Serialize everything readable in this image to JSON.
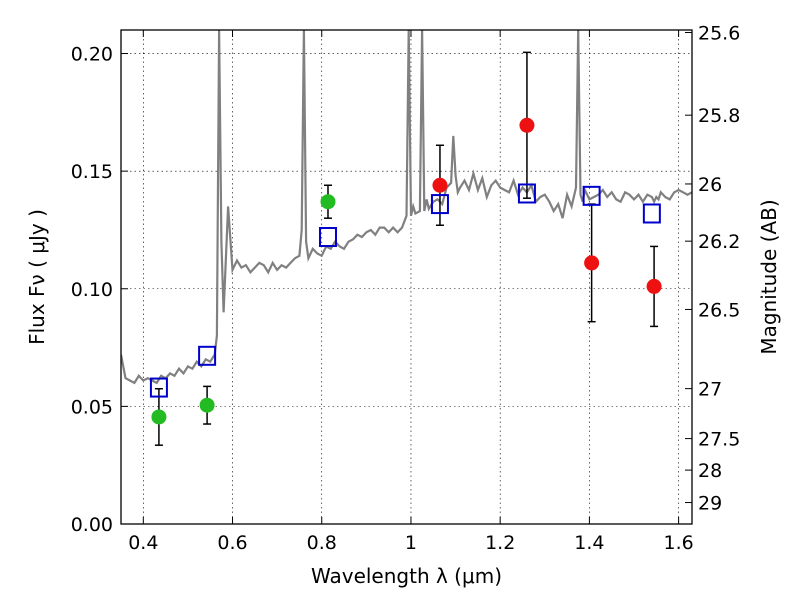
{
  "chart_data": {
    "type": "scatter",
    "title": "",
    "xlabel": "Wavelength  λ (μm)",
    "ylabel": "Flux  Fν  ( μJy )",
    "y2label": "Magnitude (AB)",
    "xlim": [
      0.35,
      1.63
    ],
    "ylim": [
      0.0,
      0.21
    ],
    "grid": true,
    "x_ticks": [
      0.4,
      0.6,
      0.8,
      1.0,
      1.2,
      1.4,
      1.6
    ],
    "x_tick_labels": [
      "0.4",
      "0.6",
      "0.8",
      "1",
      "1.2",
      "1.4",
      "1.6"
    ],
    "y_ticks": [
      0.0,
      0.05,
      0.1,
      0.15,
      0.2
    ],
    "y_tick_labels": [
      "0.00",
      "0.05",
      "0.10",
      "0.15",
      "0.20"
    ],
    "y2_ticks": [
      25.6,
      25.8,
      26,
      26.2,
      26.5,
      27,
      27.5,
      28,
      29
    ],
    "y2_tick_labels": [
      "25.6",
      "25.8",
      "26",
      "26.2",
      "26.5",
      "27",
      "27.5",
      "28",
      "29"
    ],
    "colors": {
      "model": "#808080",
      "green": "#22bb22",
      "red": "#ee1111",
      "boxes": "#0000cc"
    },
    "series": [
      {
        "marker": "circle",
        "color": "green",
        "points": [
          {
            "x": 0.435,
            "y": 0.0455,
            "err": 0.012
          },
          {
            "x": 0.543,
            "y": 0.0505,
            "err": 0.008
          },
          {
            "x": 0.814,
            "y": 0.137,
            "err": 0.007
          }
        ]
      },
      {
        "marker": "circle",
        "color": "red",
        "points": [
          {
            "x": 1.065,
            "y": 0.144,
            "err": 0.017
          },
          {
            "x": 1.26,
            "y": 0.1695,
            "err": 0.031
          },
          {
            "x": 1.405,
            "y": 0.111,
            "err": 0.025
          },
          {
            "x": 1.545,
            "y": 0.101,
            "err": 0.017
          }
        ]
      },
      {
        "marker": "open-square",
        "color": "boxes",
        "points": [
          {
            "x": 0.435,
            "y": 0.058
          },
          {
            "x": 0.543,
            "y": 0.0715
          },
          {
            "x": 0.814,
            "y": 0.122
          },
          {
            "x": 1.065,
            "y": 0.136
          },
          {
            "x": 1.26,
            "y": 0.1405
          },
          {
            "x": 1.405,
            "y": 0.1395
          },
          {
            "x": 1.54,
            "y": 0.132
          }
        ]
      },
      {
        "marker": "line",
        "color": "model",
        "x": [
          0.35,
          0.36,
          0.37,
          0.38,
          0.39,
          0.4,
          0.41,
          0.42,
          0.43,
          0.44,
          0.45,
          0.46,
          0.47,
          0.48,
          0.49,
          0.5,
          0.51,
          0.52,
          0.53,
          0.54,
          0.55,
          0.56,
          0.565,
          0.57,
          0.575,
          0.58,
          0.59,
          0.6,
          0.61,
          0.62,
          0.63,
          0.64,
          0.65,
          0.66,
          0.67,
          0.68,
          0.69,
          0.7,
          0.71,
          0.72,
          0.73,
          0.74,
          0.75,
          0.755,
          0.76,
          0.765,
          0.77,
          0.78,
          0.79,
          0.8,
          0.81,
          0.82,
          0.83,
          0.84,
          0.85,
          0.86,
          0.87,
          0.88,
          0.89,
          0.9,
          0.91,
          0.92,
          0.93,
          0.94,
          0.95,
          0.96,
          0.97,
          0.98,
          0.99,
          0.995,
          1.0,
          1.005,
          1.01,
          1.02,
          1.025,
          1.03,
          1.035,
          1.04,
          1.05,
          1.06,
          1.07,
          1.08,
          1.09,
          1.095,
          1.1,
          1.105,
          1.11,
          1.12,
          1.13,
          1.14,
          1.15,
          1.16,
          1.17,
          1.18,
          1.19,
          1.2,
          1.21,
          1.22,
          1.23,
          1.24,
          1.25,
          1.26,
          1.27,
          1.28,
          1.29,
          1.3,
          1.31,
          1.32,
          1.33,
          1.34,
          1.35,
          1.36,
          1.37,
          1.375,
          1.38,
          1.385,
          1.39,
          1.4,
          1.41,
          1.42,
          1.43,
          1.44,
          1.45,
          1.46,
          1.47,
          1.48,
          1.49,
          1.5,
          1.51,
          1.52,
          1.53,
          1.54,
          1.545,
          1.55,
          1.555,
          1.56,
          1.57,
          1.58,
          1.59,
          1.6,
          1.61,
          1.62,
          1.63
        ],
        "y": [
          0.072,
          0.062,
          0.061,
          0.06,
          0.063,
          0.061,
          0.062,
          0.061,
          0.06,
          0.063,
          0.062,
          0.064,
          0.063,
          0.066,
          0.064,
          0.067,
          0.066,
          0.069,
          0.067,
          0.07,
          0.069,
          0.072,
          0.08,
          0.21,
          0.12,
          0.09,
          0.135,
          0.108,
          0.112,
          0.109,
          0.11,
          0.107,
          0.109,
          0.111,
          0.11,
          0.107,
          0.111,
          0.108,
          0.11,
          0.109,
          0.111,
          0.113,
          0.114,
          0.125,
          0.21,
          0.12,
          0.113,
          0.117,
          0.115,
          0.114,
          0.118,
          0.117,
          0.12,
          0.118,
          0.117,
          0.12,
          0.121,
          0.123,
          0.122,
          0.124,
          0.125,
          0.123,
          0.126,
          0.126,
          0.124,
          0.126,
          0.124,
          0.126,
          0.131,
          0.21,
          0.131,
          0.135,
          0.132,
          0.133,
          0.21,
          0.133,
          0.138,
          0.134,
          0.137,
          0.138,
          0.136,
          0.143,
          0.145,
          0.165,
          0.148,
          0.141,
          0.143,
          0.146,
          0.142,
          0.149,
          0.142,
          0.147,
          0.139,
          0.144,
          0.146,
          0.143,
          0.142,
          0.141,
          0.146,
          0.14,
          0.143,
          0.141,
          0.144,
          0.137,
          0.139,
          0.14,
          0.137,
          0.133,
          0.136,
          0.13,
          0.14,
          0.135,
          0.143,
          0.21,
          0.14,
          0.137,
          0.142,
          0.138,
          0.139,
          0.14,
          0.142,
          0.139,
          0.141,
          0.138,
          0.137,
          0.141,
          0.14,
          0.138,
          0.14,
          0.137,
          0.14,
          0.139,
          0.137,
          0.139,
          0.138,
          0.141,
          0.139,
          0.138,
          0.141,
          0.142,
          0.141,
          0.14,
          0.141
        ]
      }
    ]
  }
}
